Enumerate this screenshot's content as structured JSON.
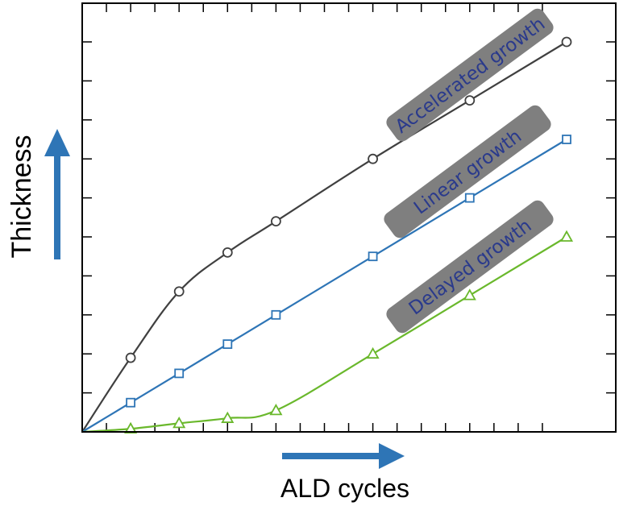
{
  "chart_data": {
    "type": "line",
    "xlabel": "ALD cycles",
    "ylabel": "Thickness",
    "xlim": [
      0,
      10
    ],
    "ylim": [
      0,
      10
    ],
    "x_ticks": [
      0.5,
      1,
      1.5,
      2,
      2.5,
      3,
      3.5,
      4,
      4.5,
      5,
      5.5,
      6,
      6.5,
      7,
      7.5,
      8,
      8.5,
      9,
      9.5
    ],
    "y_ticks": [
      1,
      2,
      3,
      4,
      5,
      6,
      7,
      8,
      9,
      10
    ],
    "grid": false,
    "legend": "none",
    "series": [
      {
        "name": "Accelerated growth",
        "marker": "circle",
        "color": "#404040",
        "x": [
          0,
          1,
          2,
          3,
          4,
          6,
          8,
          10
        ],
        "y": [
          0,
          1.9,
          3.6,
          4.6,
          5.4,
          7.0,
          8.5,
          10.0
        ]
      },
      {
        "name": "Linear growth",
        "marker": "square",
        "color": "#2e75b6",
        "x": [
          0,
          1,
          2,
          3,
          4,
          6,
          8,
          10
        ],
        "y": [
          0,
          0.75,
          1.5,
          2.25,
          3.0,
          4.5,
          6.0,
          7.5
        ]
      },
      {
        "name": "Delayed growth",
        "marker": "triangle",
        "color": "#6ab82c",
        "x": [
          0,
          1,
          2,
          3,
          4,
          6,
          8,
          10
        ],
        "y": [
          0,
          0.08,
          0.22,
          0.35,
          0.55,
          2.0,
          3.5,
          5.0
        ]
      }
    ]
  },
  "colors": {
    "badge": "#7f7f7f",
    "badge_text": "#2a3a8c",
    "arrow": "#2e75b6",
    "frame": "#000000"
  }
}
